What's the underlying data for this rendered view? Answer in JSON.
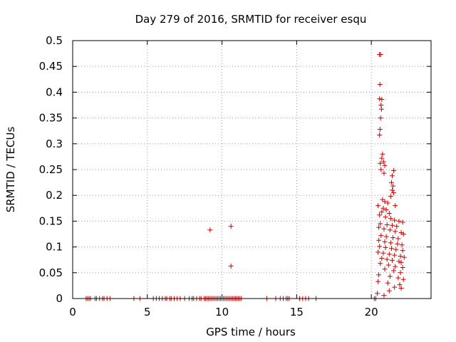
{
  "chart_data": {
    "type": "scatter",
    "title": "Day 279 of 2016, SRMTID for receiver esqu",
    "xlabel": "GPS time / hours",
    "ylabel": "SRMTID / TECUs",
    "xlim": [
      0,
      24
    ],
    "ylim": [
      0,
      0.5
    ],
    "xticks": [
      {
        "value": 0,
        "label": "0"
      },
      {
        "value": 5,
        "label": "5"
      },
      {
        "value": 10,
        "label": "10"
      },
      {
        "value": 15,
        "label": "15"
      },
      {
        "value": 20,
        "label": "20"
      }
    ],
    "yticks": [
      {
        "value": 0,
        "label": "0"
      },
      {
        "value": 0.05,
        "label": "0.05"
      },
      {
        "value": 0.1,
        "label": "0.1"
      },
      {
        "value": 0.15,
        "label": "0.15"
      },
      {
        "value": 0.2,
        "label": "0.2"
      },
      {
        "value": 0.25,
        "label": "0.25"
      },
      {
        "value": 0.3,
        "label": "0.3"
      },
      {
        "value": 0.35,
        "label": "0.35"
      },
      {
        "value": 0.4,
        "label": "0.4"
      },
      {
        "value": 0.45,
        "label": "0.45"
      },
      {
        "value": 0.5,
        "label": "0.5"
      }
    ],
    "grid": true,
    "marker": "plus",
    "series": [
      {
        "color": "#cc0000",
        "points": [
          [
            0.9,
            0
          ],
          [
            1.0,
            0
          ],
          [
            1.1,
            0
          ],
          [
            1.2,
            0
          ],
          [
            1.5,
            0
          ],
          [
            1.6,
            0
          ],
          [
            1.8,
            0
          ],
          [
            2.0,
            0
          ],
          [
            2.1,
            0
          ],
          [
            2.3,
            0
          ],
          [
            2.5,
            0
          ],
          [
            4.1,
            0
          ],
          [
            4.5,
            0
          ],
          [
            5.4,
            0
          ],
          [
            5.6,
            0
          ],
          [
            5.8,
            0
          ],
          [
            6.0,
            0
          ],
          [
            6.2,
            0
          ],
          [
            6.3,
            0
          ],
          [
            6.5,
            0
          ],
          [
            6.6,
            0
          ],
          [
            6.8,
            0
          ],
          [
            7.0,
            0
          ],
          [
            7.2,
            0
          ],
          [
            7.5,
            0
          ],
          [
            7.8,
            0
          ],
          [
            8.0,
            0
          ],
          [
            8.1,
            0
          ],
          [
            8.3,
            0
          ],
          [
            8.5,
            0
          ],
          [
            8.6,
            0
          ],
          [
            8.8,
            0
          ],
          [
            8.9,
            0
          ],
          [
            9.0,
            0
          ],
          [
            9.1,
            0
          ],
          [
            9.2,
            0
          ],
          [
            9.3,
            0
          ],
          [
            9.4,
            0
          ],
          [
            9.5,
            0
          ],
          [
            9.6,
            0
          ],
          [
            9.7,
            0
          ],
          [
            9.8,
            0
          ],
          [
            9.9,
            0
          ],
          [
            10.0,
            0
          ],
          [
            10.1,
            0
          ],
          [
            10.2,
            0
          ],
          [
            10.3,
            0
          ],
          [
            10.4,
            0
          ],
          [
            10.5,
            0
          ],
          [
            10.6,
            0
          ],
          [
            10.7,
            0
          ],
          [
            10.8,
            0
          ],
          [
            10.9,
            0
          ],
          [
            11.0,
            0
          ],
          [
            11.1,
            0
          ],
          [
            11.2,
            0
          ],
          [
            11.3,
            0
          ],
          [
            13.0,
            0
          ],
          [
            13.6,
            0
          ],
          [
            13.9,
            0
          ],
          [
            14.1,
            0
          ],
          [
            14.3,
            0
          ],
          [
            14.4,
            0
          ],
          [
            14.5,
            0
          ],
          [
            15.2,
            0
          ],
          [
            15.4,
            0
          ],
          [
            15.6,
            0
          ],
          [
            15.8,
            0
          ],
          [
            16.3,
            0
          ],
          [
            20.2,
            0
          ],
          [
            20.3,
            0
          ],
          [
            9.2,
            0.133
          ],
          [
            10.6,
            0.14
          ],
          [
            10.6,
            0.063
          ],
          [
            20.55,
            0.473
          ],
          [
            20.62,
            0.473
          ],
          [
            20.58,
            0.415
          ],
          [
            20.55,
            0.387
          ],
          [
            20.7,
            0.386
          ],
          [
            20.65,
            0.375
          ],
          [
            20.68,
            0.367
          ],
          [
            20.62,
            0.35
          ],
          [
            20.58,
            0.328
          ],
          [
            20.55,
            0.317
          ],
          [
            20.75,
            0.28
          ],
          [
            20.7,
            0.272
          ],
          [
            20.82,
            0.265
          ],
          [
            20.6,
            0.262
          ],
          [
            20.9,
            0.258
          ],
          [
            20.65,
            0.25
          ],
          [
            21.5,
            0.248
          ],
          [
            20.85,
            0.243
          ],
          [
            21.4,
            0.238
          ],
          [
            21.35,
            0.225
          ],
          [
            21.45,
            0.218
          ],
          [
            21.4,
            0.21
          ],
          [
            21.5,
            0.205
          ],
          [
            21.3,
            0.198
          ],
          [
            20.75,
            0.192
          ],
          [
            20.9,
            0.188
          ],
          [
            21.1,
            0.185
          ],
          [
            21.6,
            0.18
          ],
          [
            20.45,
            0.18
          ],
          [
            20.8,
            0.175
          ],
          [
            21.0,
            0.172
          ],
          [
            20.7,
            0.168
          ],
          [
            21.2,
            0.165
          ],
          [
            20.55,
            0.162
          ],
          [
            20.95,
            0.158
          ],
          [
            21.3,
            0.155
          ],
          [
            21.55,
            0.152
          ],
          [
            21.85,
            0.15
          ],
          [
            22.1,
            0.148
          ],
          [
            20.6,
            0.145
          ],
          [
            21.05,
            0.143
          ],
          [
            21.4,
            0.142
          ],
          [
            21.7,
            0.14
          ],
          [
            20.5,
            0.138
          ],
          [
            20.85,
            0.135
          ],
          [
            21.25,
            0.133
          ],
          [
            21.6,
            0.13
          ],
          [
            22.0,
            0.128
          ],
          [
            22.15,
            0.125
          ],
          [
            20.65,
            0.122
          ],
          [
            21.0,
            0.12
          ],
          [
            21.45,
            0.118
          ],
          [
            21.8,
            0.116
          ],
          [
            20.5,
            0.113
          ],
          [
            20.9,
            0.11
          ],
          [
            21.3,
            0.108
          ],
          [
            21.75,
            0.106
          ],
          [
            22.05,
            0.104
          ],
          [
            20.55,
            0.101
          ],
          [
            20.95,
            0.099
          ],
          [
            21.35,
            0.097
          ],
          [
            21.65,
            0.095
          ],
          [
            22.1,
            0.093
          ],
          [
            20.45,
            0.09
          ],
          [
            20.8,
            0.088
          ],
          [
            21.2,
            0.086
          ],
          [
            21.55,
            0.084
          ],
          [
            21.95,
            0.082
          ],
          [
            22.2,
            0.08
          ],
          [
            20.7,
            0.078
          ],
          [
            21.05,
            0.076
          ],
          [
            21.4,
            0.074
          ],
          [
            21.85,
            0.072
          ],
          [
            22.0,
            0.07
          ],
          [
            20.6,
            0.068
          ],
          [
            21.15,
            0.065
          ],
          [
            21.6,
            0.062
          ],
          [
            22.1,
            0.06
          ],
          [
            20.9,
            0.057
          ],
          [
            21.5,
            0.054
          ],
          [
            21.95,
            0.05
          ],
          [
            20.5,
            0.046
          ],
          [
            21.25,
            0.043
          ],
          [
            21.8,
            0.04
          ],
          [
            22.15,
            0.037
          ],
          [
            20.45,
            0.033
          ],
          [
            21.1,
            0.03
          ],
          [
            21.9,
            0.027
          ],
          [
            21.55,
            0.022
          ],
          [
            22.0,
            0.02
          ],
          [
            21.2,
            0.015
          ],
          [
            20.4,
            0.01
          ],
          [
            20.85,
            0.006
          ]
        ]
      }
    ]
  }
}
